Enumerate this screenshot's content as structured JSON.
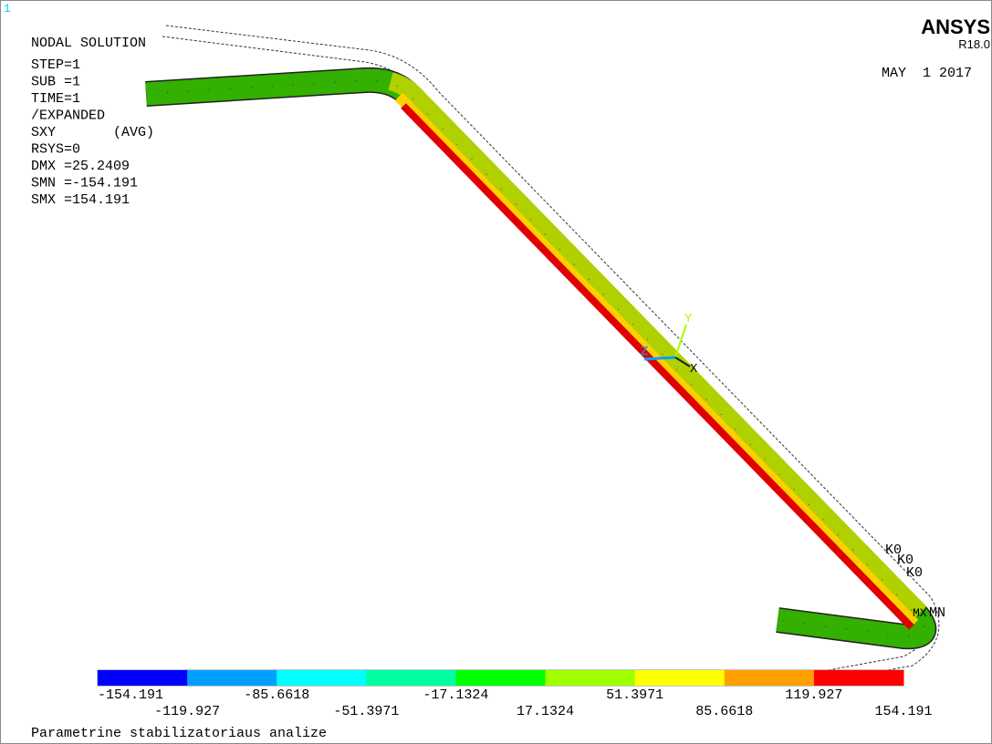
{
  "window_number": "1",
  "info": [
    "NODAL SOLUTION",
    "STEP=1",
    "SUB =1",
    "TIME=1",
    "/EXPANDED",
    "SXY       (AVG)",
    "RSYS=0",
    "DMX =25.2409",
    "SMN =-154.191",
    "SMX =154.191"
  ],
  "brand": "ANSYS",
  "version": "R18.0",
  "date": "MAY  1 2017",
  "axes": {
    "y": "Y",
    "z": "Z",
    "x": "X"
  },
  "markers": {
    "k0": [
      "K0",
      "K0",
      "K0"
    ],
    "mx": "MX",
    "mn": "MN"
  },
  "legend": {
    "colors": [
      "#0000ff",
      "#00a0ff",
      "#00ffff",
      "#00ffa0",
      "#00ff00",
      "#a0ff00",
      "#ffff00",
      "#ffa000",
      "#ff0000"
    ],
    "labels": [
      "-154.191",
      "-119.927",
      "-85.6618",
      "-51.3971",
      "-17.1324",
      "17.1324",
      "51.3971",
      "85.6618",
      "119.927",
      "154.191"
    ]
  },
  "caption": "Parametrine stabilizatoriaus analize"
}
